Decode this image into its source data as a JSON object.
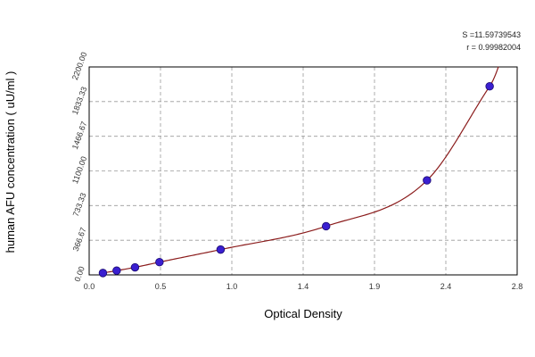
{
  "chart_data": {
    "type": "scatter",
    "xlabel": "Optical Density",
    "ylabel": "human AFU concentration ( uU/ml )",
    "xlim": [
      0,
      2.8
    ],
    "ylim": [
      0,
      2200
    ],
    "xticks": [
      "0.0",
      "0.5",
      "1.0",
      "1.4",
      "1.9",
      "2.4",
      "2.8"
    ],
    "yticks": [
      "0.00",
      "366.67",
      "733.33",
      "1100.00",
      "1466.67",
      "1833.33",
      "2200.00"
    ],
    "grid": true,
    "stats": {
      "s_text": "S =11.59739543",
      "r_text": "r = 0.99982004"
    },
    "colors": {
      "points": "#3a1fd0",
      "point_edge": "#1a0a70",
      "curve": "#8b1c1c",
      "grid": "#9a9a9a"
    },
    "series": [
      {
        "points": [
          {
            "x": 0.09,
            "y": 20
          },
          {
            "x": 0.18,
            "y": 45
          },
          {
            "x": 0.3,
            "y": 80
          },
          {
            "x": 0.46,
            "y": 135
          },
          {
            "x": 0.86,
            "y": 268
          },
          {
            "x": 1.55,
            "y": 515
          },
          {
            "x": 2.21,
            "y": 1000
          },
          {
            "x": 2.62,
            "y": 1995
          }
        ]
      }
    ]
  }
}
